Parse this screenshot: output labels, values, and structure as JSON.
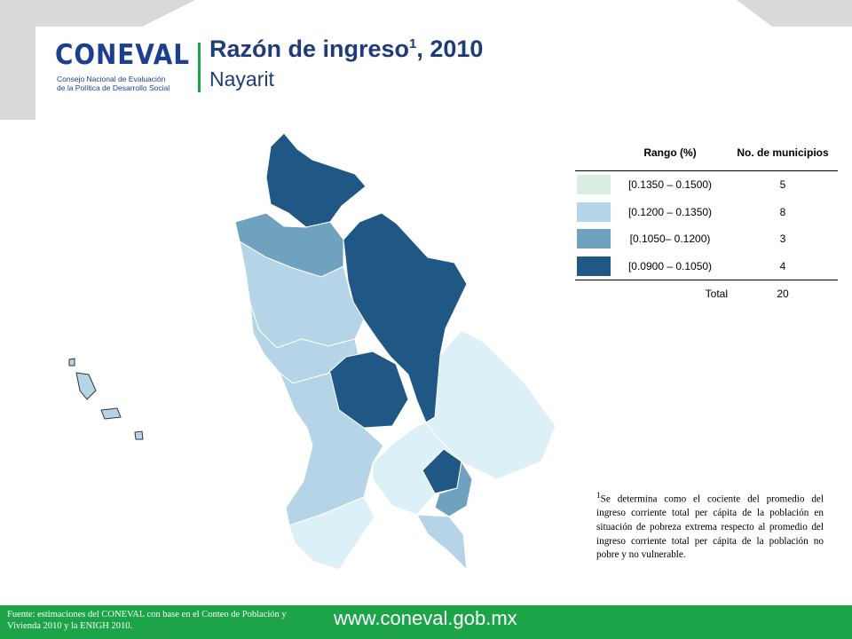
{
  "header": {
    "logo": "CONEVAL",
    "logo_line1": "Consejo Nacional de Evaluación",
    "logo_line2": "de la Política de Desarrollo Social",
    "title": "Razón de ingreso",
    "title_sup": "1",
    "title_year": ", 2010",
    "subtitle": "Nayarit"
  },
  "legend_table": {
    "headers": [
      "Rango (%)",
      "No. de municipios"
    ],
    "rows": [
      {
        "range": "[0.1350 – 0.1500)",
        "count": 5,
        "color": "#d9ede1"
      },
      {
        "range": "[0.1200 – 0.1350)",
        "count": 8,
        "color": "#b6d4e7"
      },
      {
        "range": "[0.1050– 0.1200)",
        "count": 3,
        "color": "#6fa2bf"
      },
      {
        "range": "[0.0900 – 0.1050)",
        "count": 4,
        "color": "#1f5884"
      }
    ],
    "total_label": "Total",
    "total": 20
  },
  "footnote": {
    "sup": "1",
    "text": "Se determina como el cociente del promedio del ingreso corriente total per cápita de la población en situación de pobreza extrema respecto al promedio del ingreso corriente total per cápita de la población no pobre y no vulnerable."
  },
  "footer": {
    "source": "Fuente: estimaciones del CONEVAL con base en el Conteo de Población y Vivienda 2010 y la ENIGH 2010.",
    "url": "www.coneval.gob.mx"
  }
}
